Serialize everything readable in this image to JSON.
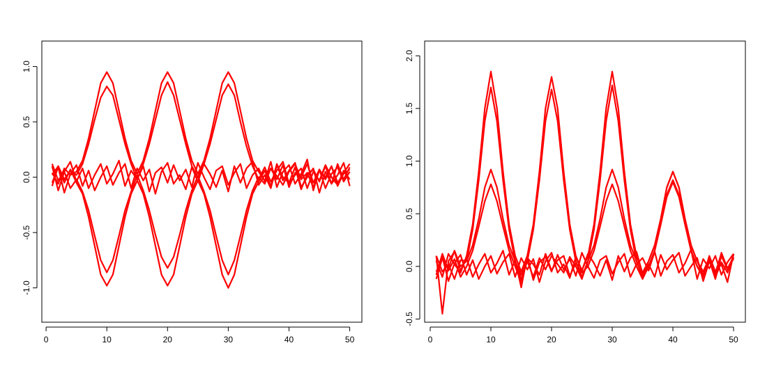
{
  "chart_data": [
    {
      "type": "line",
      "x": [
        1,
        2,
        3,
        4,
        5,
        6,
        7,
        8,
        9,
        10,
        11,
        12,
        13,
        14,
        15,
        16,
        17,
        18,
        19,
        20,
        21,
        22,
        23,
        24,
        25,
        26,
        27,
        28,
        29,
        30,
        31,
        32,
        33,
        34,
        35,
        36,
        37,
        38,
        39,
        40,
        41,
        42,
        43,
        44,
        45,
        46,
        47,
        48,
        49,
        50
      ],
      "xlim": [
        -0.7,
        52
      ],
      "xticks": [
        0,
        10,
        20,
        30,
        40,
        50
      ],
      "ylim": [
        -1.31,
        1.23
      ],
      "yticks": [
        {
          "value": -1,
          "label": "-1.0"
        },
        {
          "value": -0.5,
          "label": "-0.5"
        },
        {
          "value": 0,
          "label": "0.0"
        },
        {
          "value": 0.5,
          "label": "0.5"
        },
        {
          "value": 1,
          "label": "1.0"
        }
      ],
      "series": [
        {
          "color": "#ff0000",
          "values": [
            0.04,
            -0.06,
            0.08,
            0.02,
            0.05,
            0.15,
            0.35,
            0.6,
            0.85,
            0.95,
            0.85,
            0.6,
            0.35,
            0.15,
            0.03,
            0.15,
            0.35,
            0.6,
            0.85,
            0.95,
            0.85,
            0.6,
            0.35,
            0.15,
            0.03,
            0.15,
            0.35,
            0.6,
            0.85,
            0.95,
            0.85,
            0.6,
            0.35,
            0.15,
            0.05,
            -0.03,
            0.08,
            0.01,
            -0.07,
            0.05,
            0.12,
            -0.02,
            0.04,
            -0.09,
            0.06,
            0.0,
            0.1,
            -0.05,
            0.03,
            0.07
          ]
        },
        {
          "color": "#ff0000",
          "values": [
            -0.08,
            0.1,
            -0.02,
            0.06,
            0.02,
            0.12,
            0.3,
            0.52,
            0.72,
            0.82,
            0.74,
            0.52,
            0.3,
            0.12,
            -0.02,
            0.12,
            0.3,
            0.52,
            0.74,
            0.86,
            0.74,
            0.52,
            0.3,
            0.1,
            0.0,
            0.12,
            0.3,
            0.52,
            0.74,
            0.84,
            0.74,
            0.5,
            0.28,
            0.1,
            -0.02,
            0.09,
            -0.04,
            0.06,
            0.14,
            -0.06,
            0.02,
            0.08,
            -0.1,
            0.05,
            -0.03,
            0.11,
            0.0,
            -0.07,
            0.06,
            -0.02
          ]
        },
        {
          "color": "#ff0000",
          "values": [
            0.02,
            0.1,
            -0.05,
            0.07,
            -0.05,
            -0.15,
            -0.36,
            -0.62,
            -0.88,
            -0.98,
            -0.88,
            -0.62,
            -0.36,
            -0.15,
            -0.03,
            -0.15,
            -0.36,
            -0.62,
            -0.88,
            -0.98,
            -0.88,
            -0.62,
            -0.36,
            -0.15,
            -0.03,
            -0.15,
            -0.36,
            -0.62,
            -0.88,
            -1.0,
            -0.88,
            -0.62,
            -0.36,
            -0.15,
            -0.04,
            0.06,
            -0.08,
            0.12,
            0.0,
            -0.05,
            0.09,
            -0.11,
            0.03,
            0.07,
            -0.04,
            0.1,
            -0.06,
            0.02,
            0.13,
            -0.08
          ]
        },
        {
          "color": "#ff0000",
          "values": [
            0.12,
            -0.03,
            0.05,
            -0.1,
            -0.02,
            -0.13,
            -0.3,
            -0.53,
            -0.75,
            -0.86,
            -0.75,
            -0.53,
            -0.3,
            -0.13,
            0.02,
            -0.12,
            -0.3,
            -0.52,
            -0.72,
            -0.82,
            -0.72,
            -0.52,
            -0.3,
            -0.12,
            0.01,
            -0.13,
            -0.3,
            -0.53,
            -0.75,
            -0.88,
            -0.75,
            -0.53,
            -0.3,
            -0.12,
            0.0,
            -0.06,
            0.08,
            -0.02,
            0.11,
            -0.09,
            0.04,
            0.0,
            0.12,
            -0.05,
            0.07,
            -0.1,
            0.03,
            0.09,
            -0.04,
            0.05
          ]
        },
        {
          "color": "#ff0000",
          "values": [
            0.1,
            -0.12,
            0.05,
            0.14,
            -0.04,
            0.08,
            -0.1,
            0.02,
            0.12,
            -0.06,
            0.03,
            0.15,
            -0.08,
            0.06,
            -0.02,
            0.1,
            -0.13,
            0.04,
            0.09,
            -0.05,
            0.11,
            -0.03,
            0.07,
            -0.09,
            0.13,
            0.0,
            -0.11,
            0.06,
            0.1,
            -0.07,
            0.04,
            0.12,
            -0.1,
            0.02,
            0.08,
            -0.04,
            0.14,
            -0.09,
            0.05,
            0.11,
            -0.06,
            0.03,
            0.16,
            -0.12,
            0.07,
            -0.02,
            0.1,
            -0.08,
            0.04,
            0.12
          ]
        },
        {
          "color": "#ff0000",
          "values": [
            -0.05,
            0.09,
            -0.14,
            0.03,
            0.11,
            -0.08,
            0.06,
            -0.12,
            0.0,
            0.1,
            -0.07,
            0.04,
            0.12,
            -0.1,
            0.08,
            -0.03,
            0.07,
            -0.15,
            0.05,
            0.13,
            -0.06,
            0.02,
            -0.11,
            0.09,
            -0.04,
            0.12,
            0.03,
            -0.09,
            0.06,
            -0.13,
            0.1,
            -0.05,
            0.08,
            0.14,
            -0.07,
            0.02,
            -0.1,
            0.11,
            -0.03,
            0.06,
            0.13,
            -0.09,
            0.0,
            0.08,
            -0.14,
            0.05,
            -0.06,
            0.12,
            -0.02,
            0.09
          ]
        }
      ]
    },
    {
      "type": "line",
      "x": [
        1,
        2,
        3,
        4,
        5,
        6,
        7,
        8,
        9,
        10,
        11,
        12,
        13,
        14,
        15,
        16,
        17,
        18,
        19,
        20,
        21,
        22,
        23,
        24,
        25,
        26,
        27,
        28,
        29,
        30,
        31,
        32,
        33,
        34,
        35,
        36,
        37,
        38,
        39,
        40,
        41,
        42,
        43,
        44,
        45,
        46,
        47,
        48,
        49,
        50
      ],
      "xlim": [
        -0.92,
        51.95
      ],
      "xticks": [
        0,
        10,
        20,
        30,
        40,
        50
      ],
      "ylim": [
        -0.53,
        2.14
      ],
      "yticks": [
        {
          "value": -0.5,
          "label": "-0.5"
        },
        {
          "value": 0,
          "label": "0.0"
        },
        {
          "value": 0.5,
          "label": "0.5"
        },
        {
          "value": 1,
          "label": "1.0"
        },
        {
          "value": 1.5,
          "label": "1.5"
        },
        {
          "value": 2,
          "label": "2.0"
        }
      ],
      "series": [
        {
          "color": "#ff0000",
          "values": [
            0.05,
            -0.1,
            0.12,
            0.02,
            -0.06,
            0.1,
            0.4,
            0.9,
            1.5,
            1.85,
            1.5,
            0.9,
            0.4,
            0.1,
            -0.05,
            0.1,
            0.4,
            0.9,
            1.5,
            1.8,
            1.5,
            0.9,
            0.4,
            0.1,
            -0.04,
            0.1,
            0.4,
            0.9,
            1.5,
            1.85,
            1.5,
            0.9,
            0.4,
            0.1,
            -0.06,
            0.05,
            0.2,
            0.45,
            0.75,
            0.9,
            0.75,
            0.45,
            0.2,
            0.05,
            -0.08,
            0.06,
            -0.12,
            0.1,
            -0.03,
            0.08
          ]
        },
        {
          "color": "#ff0000",
          "values": [
            -0.12,
            0.08,
            -0.02,
            0.15,
            0.0,
            0.05,
            0.35,
            0.82,
            1.38,
            1.7,
            1.38,
            0.82,
            0.35,
            0.05,
            -0.12,
            0.05,
            0.35,
            0.82,
            1.38,
            1.68,
            1.38,
            0.82,
            0.35,
            0.05,
            -0.1,
            0.05,
            0.35,
            0.82,
            1.38,
            1.72,
            1.38,
            0.82,
            0.35,
            0.05,
            -0.1,
            0.0,
            0.15,
            0.4,
            0.68,
            0.82,
            0.68,
            0.4,
            0.15,
            0.0,
            -0.1,
            0.1,
            -0.05,
            0.02,
            -0.15,
            0.12
          ]
        },
        {
          "color": "#ff0000",
          "values": [
            0.1,
            -0.05,
            0.02,
            -0.12,
            0.06,
            0.05,
            0.2,
            0.45,
            0.75,
            0.92,
            0.75,
            0.45,
            0.2,
            0.05,
            -0.08,
            0.05,
            -0.1,
            0.08,
            -0.03,
            0.1,
            0.02,
            -0.06,
            0.09,
            0.0,
            -0.12,
            0.05,
            0.2,
            0.45,
            0.75,
            0.92,
            0.75,
            0.45,
            0.2,
            0.05,
            -0.1,
            0.05,
            0.2,
            0.45,
            0.75,
            0.9,
            0.75,
            0.45,
            0.2,
            0.05,
            -0.05,
            0.08,
            -0.1,
            0.04,
            -0.06,
            0.11
          ]
        },
        {
          "color": "#ff0000",
          "values": [
            -0.08,
            0.12,
            -0.04,
            0.07,
            -0.1,
            0.0,
            0.15,
            0.38,
            0.62,
            0.78,
            0.62,
            0.38,
            0.15,
            0.0,
            -0.15,
            0.08,
            0.02,
            -0.08,
            0.12,
            -0.04,
            0.06,
            0.1,
            -0.09,
            0.03,
            -0.06,
            0.0,
            0.15,
            0.38,
            0.62,
            0.78,
            0.62,
            0.38,
            0.15,
            0.0,
            -0.12,
            0.0,
            0.15,
            0.4,
            0.66,
            0.8,
            0.66,
            0.4,
            0.15,
            0.0,
            -0.1,
            0.05,
            -0.08,
            0.13,
            -0.02,
            0.07
          ]
        },
        {
          "color": "#ff0000",
          "values": [
            0.1,
            -0.45,
            0.05,
            0.14,
            -0.04,
            0.08,
            -0.1,
            0.02,
            0.12,
            -0.06,
            0.03,
            0.15,
            -0.08,
            0.06,
            -0.2,
            0.1,
            -0.13,
            0.04,
            0.09,
            -0.05,
            0.11,
            -0.03,
            0.07,
            -0.09,
            0.13,
            0.0,
            -0.11,
            0.06,
            0.1,
            -0.07,
            0.04,
            0.12,
            -0.1,
            0.02,
            0.08,
            -0.04,
            0.14,
            -0.09,
            0.05,
            0.11,
            -0.06,
            0.03,
            0.16,
            -0.12,
            0.07,
            -0.02,
            0.1,
            -0.08,
            0.04,
            0.12
          ]
        },
        {
          "color": "#ff0000",
          "values": [
            -0.05,
            0.09,
            -0.14,
            0.03,
            0.11,
            -0.08,
            0.06,
            -0.12,
            0.0,
            0.1,
            -0.07,
            0.04,
            0.12,
            -0.1,
            0.08,
            -0.03,
            0.07,
            -0.15,
            0.05,
            0.13,
            -0.06,
            0.02,
            -0.11,
            0.09,
            -0.04,
            0.12,
            0.03,
            -0.09,
            0.06,
            -0.13,
            0.1,
            -0.05,
            0.08,
            0.14,
            -0.07,
            0.02,
            -0.1,
            0.11,
            -0.03,
            0.06,
            0.13,
            -0.09,
            0.0,
            0.08,
            -0.14,
            0.05,
            -0.06,
            0.12,
            -0.02,
            0.09
          ]
        }
      ]
    }
  ]
}
